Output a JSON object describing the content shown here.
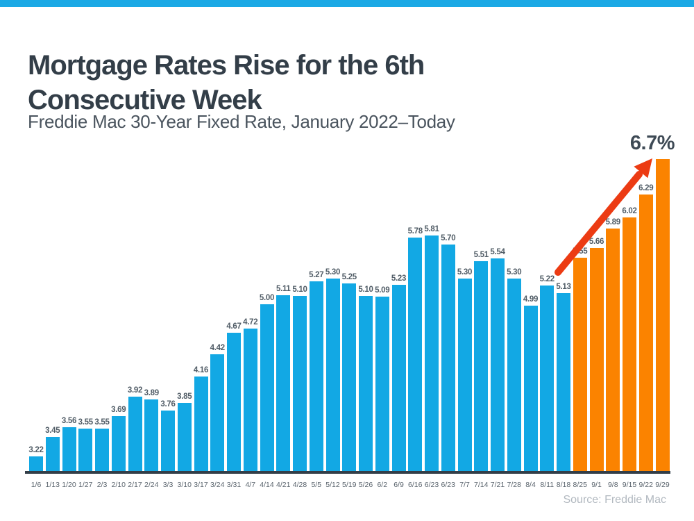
{
  "page": {
    "top_bar_color": "#1BA9E5",
    "background_color": "#FFFFFF"
  },
  "header": {
    "title": "Mortgage Rates Rise for the 6th Consecutive Week",
    "subtitle": "Freddie Mac 30-Year Fixed Rate, January 2022–Today"
  },
  "annotation": {
    "label": "6.7%",
    "arrow_color": "#EC3B13"
  },
  "source": {
    "label": "Source: Freddie Mac"
  },
  "chart_data": {
    "type": "bar",
    "title": "Mortgage Rates Rise for the 6th Consecutive Week",
    "subtitle": "Freddie Mac 30-Year Fixed Rate, January 2022–Today",
    "xlabel": "",
    "ylabel": "",
    "ylim": [
      3.05,
      6.8
    ],
    "grid": false,
    "legend": false,
    "categories": [
      "1/6",
      "1/13",
      "1/20",
      "1/27",
      "2/3",
      "2/10",
      "2/17",
      "2/24",
      "3/3",
      "3/10",
      "3/17",
      "3/24",
      "3/31",
      "4/7",
      "4/14",
      "4/21",
      "4/28",
      "5/5",
      "5/12",
      "5/19",
      "5/26",
      "6/2",
      "6/9",
      "6/16",
      "6/23",
      "6/23",
      "7/7",
      "7/14",
      "7/21",
      "7/28",
      "8/4",
      "8/11",
      "8/18",
      "8/25",
      "9/1",
      "9/8",
      "9/15",
      "9/22",
      "9/29"
    ],
    "values": [
      3.22,
      3.45,
      3.56,
      3.55,
      3.55,
      3.69,
      3.92,
      3.89,
      3.76,
      3.85,
      4.16,
      4.42,
      4.67,
      4.72,
      5.0,
      5.11,
      5.1,
      5.27,
      5.3,
      5.25,
      5.1,
      5.09,
      5.23,
      5.78,
      5.81,
      5.7,
      5.3,
      5.51,
      5.54,
      5.3,
      4.99,
      5.22,
      5.13,
      5.55,
      5.66,
      5.89,
      6.02,
      6.29,
      6.7
    ],
    "value_labels": [
      "3.22",
      "3.45",
      "3.56",
      "3.55",
      "3.55",
      "3.69",
      "3.92",
      "3.89",
      "3.76",
      "3.85",
      "4.16",
      "4.42",
      "4.67",
      "4.72",
      "5.00",
      "5.11",
      "5.10",
      "5.27",
      "5.30",
      "5.25",
      "5.10",
      "5.09",
      "5.23",
      "5.78",
      "5.81",
      "5.70",
      "5.30",
      "5.51",
      "5.54",
      "5.30",
      "4.99",
      "5.22",
      "5.13",
      "5.55",
      "5.66",
      "5.89",
      "6.02",
      "6.29",
      ""
    ],
    "colors": {
      "default": "#12A8E4",
      "highlight": "#FB8300"
    },
    "highlight_start_index": 33,
    "annotation_on_last_bar": "6.7%"
  }
}
